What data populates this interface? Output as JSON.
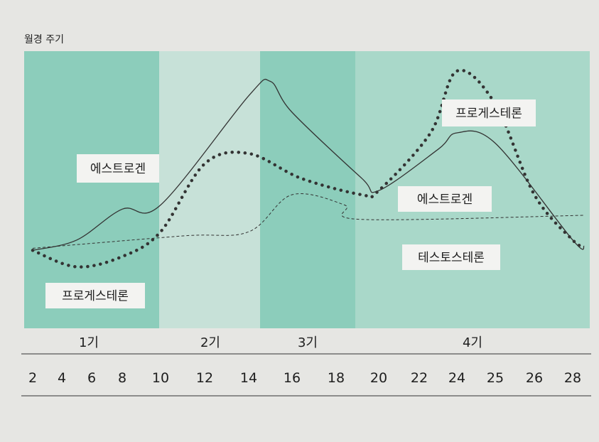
{
  "chart_data": {
    "type": "line",
    "title": "월경 주기",
    "x_ticks": [
      2,
      4,
      6,
      8,
      10,
      12,
      14,
      16,
      18,
      20,
      22,
      24,
      25,
      26,
      28
    ],
    "phases": [
      {
        "label": "1기",
        "start_tick": 0,
        "end_tick": 4
      },
      {
        "label": "2기",
        "start_tick": 4,
        "end_tick": 6
      },
      {
        "label": "3기",
        "start_tick": 7,
        "end_tick": 8
      },
      {
        "label": "4기",
        "start_tick": 8,
        "end_tick": 14
      }
    ],
    "y_range": [
      0,
      100
    ],
    "series": [
      {
        "name": "에스트로겐",
        "style": "solid",
        "values": [
          [
            0,
            13
          ],
          [
            1.5,
            18
          ],
          [
            3,
            33
          ],
          [
            4,
            35
          ],
          [
            6,
            88
          ],
          [
            6.5,
            95
          ],
          [
            7,
            80
          ],
          [
            8.6,
            48
          ],
          [
            9,
            42
          ],
          [
            10.5,
            62
          ],
          [
            11,
            70
          ],
          [
            12,
            65
          ],
          [
            14,
            18
          ],
          [
            14.3,
            15
          ]
        ],
        "labels": [
          "에스트로겐",
          "에스트로겐"
        ]
      },
      {
        "name": "프로게스테론",
        "style": "dotted",
        "values": [
          [
            0,
            13
          ],
          [
            1.5,
            5
          ],
          [
            3,
            10
          ],
          [
            4,
            22
          ],
          [
            5,
            55
          ],
          [
            6,
            60
          ],
          [
            7.2,
            48
          ],
          [
            8.6,
            40
          ],
          [
            9,
            42
          ],
          [
            10.3,
            70
          ],
          [
            11,
            100
          ],
          [
            12,
            84
          ],
          [
            13,
            40
          ],
          [
            14,
            18
          ],
          [
            14.3,
            15
          ]
        ],
        "labels": [
          "프로게스테론",
          "프로게스테론"
        ]
      },
      {
        "name": "테스토스테론",
        "style": "dashed",
        "values": [
          [
            0,
            14
          ],
          [
            4.5,
            20
          ],
          [
            6,
            22
          ],
          [
            7,
            40
          ],
          [
            8.2,
            35
          ],
          [
            8.6,
            28
          ],
          [
            14.3,
            30
          ]
        ],
        "labels": [
          "테스토스테론"
        ]
      }
    ]
  },
  "colors": {
    "phase_dark": "#8ccdbb",
    "phase_light": "#c7e1d8",
    "line": "#333333",
    "label_box": "#f3f3f1"
  }
}
